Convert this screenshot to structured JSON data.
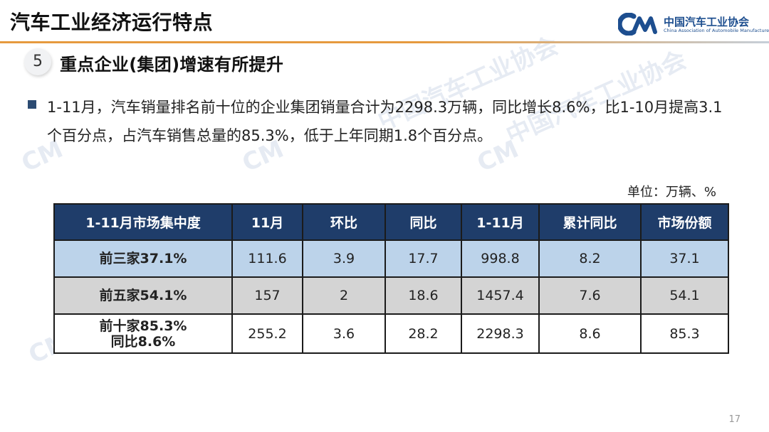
{
  "header": {
    "title": "汽车工业经济运行特点",
    "logo_cn": "中国汽车工业协会",
    "logo_en": "China Association of Automobile Manufacturers",
    "rule_color": "#e69a3e"
  },
  "section": {
    "number": "5",
    "title": "重点企业(集团)增速有所提升"
  },
  "bullet": {
    "text": "1-11月，汽车销量排名前十位的企业集团销量合计为2298.3万辆，同比增长8.6%，比1-10月提高3.1个百分点，占汽车销售总量的85.3%，低于上年同期1.8个百分点。"
  },
  "unit_label": "单位：万辆、%",
  "table": {
    "headers": [
      "1-11月市场集中度",
      "11月",
      "环比",
      "同比",
      "1-11月",
      "累计同比",
      "市场份额"
    ],
    "rows": [
      {
        "label": "前三家37.1%",
        "label2": "",
        "values": [
          "111.6",
          "3.9",
          "17.7",
          "998.8",
          "8.2",
          "37.1"
        ]
      },
      {
        "label": "前五家54.1%",
        "label2": "",
        "values": [
          "157",
          "2",
          "18.6",
          "1457.4",
          "7.6",
          "54.1"
        ]
      },
      {
        "label": "前十家85.3%",
        "label2": "同比8.6%",
        "values": [
          "255.2",
          "3.6",
          "28.2",
          "2298.3",
          "8.6",
          "85.3"
        ]
      }
    ]
  },
  "page_number": "17",
  "colors": {
    "table_header": "#1f3d6a",
    "row1": "#bcd3ea",
    "row2": "#d4d4d4",
    "brand_blue": "#1d4e8f"
  }
}
